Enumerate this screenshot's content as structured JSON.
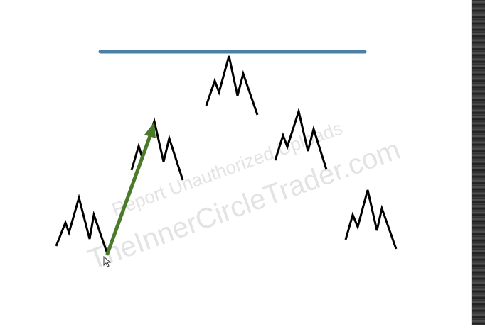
{
  "watermark": {
    "line1": "Report Unauthorized Uploads",
    "line2": "TheInnerCircleTrader.com",
    "color": "#e3e3e3"
  },
  "colors": {
    "level_line": "#4a7fa6",
    "pattern_stroke": "#000000",
    "arrow": "#4a7a2a",
    "background": "#ffffff"
  },
  "icons": {
    "cursor": "mouse-pointer-icon"
  }
}
